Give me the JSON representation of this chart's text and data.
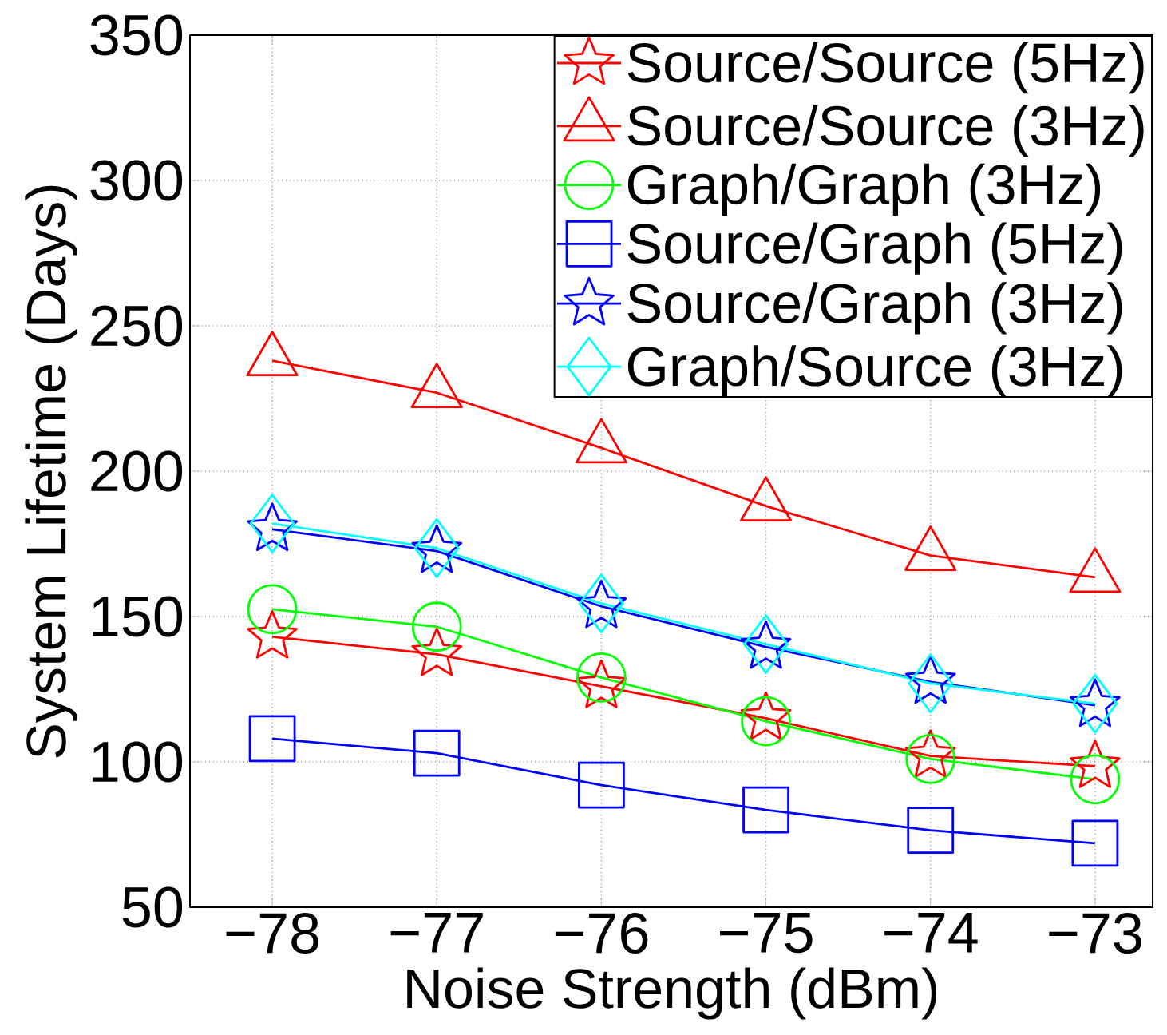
{
  "chart_data": {
    "type": "line",
    "xlabel": "Noise Strength (dBm)",
    "ylabel": "System Lifetime (Days)",
    "x": [
      -78,
      -77,
      -76,
      -75,
      -74,
      -73
    ],
    "xlim": [
      -78.5,
      -72.65
    ],
    "ylim": [
      50,
      350
    ],
    "xticks": [
      {
        "value": -78,
        "label": "−78"
      },
      {
        "value": -77,
        "label": "−77"
      },
      {
        "value": -76,
        "label": "−76"
      },
      {
        "value": -75,
        "label": "−75"
      },
      {
        "value": -74,
        "label": "−74"
      },
      {
        "value": -73,
        "label": "−73"
      }
    ],
    "yticks": [
      50,
      100,
      150,
      200,
      250,
      300,
      350
    ],
    "grid": true,
    "legend": "top right",
    "line_style": "solid",
    "series": [
      {
        "name": "Source/Source (5Hz)",
        "color": "#ff0000",
        "marker": "star",
        "values": [
          143,
          137,
          126,
          115,
          102,
          98.5
        ]
      },
      {
        "name": "Source/Source (3Hz)",
        "color": "#ff0000",
        "marker": "triangle",
        "values": [
          238,
          227,
          208,
          188,
          171,
          163.5
        ]
      },
      {
        "name": "Graph/Graph (3Hz)",
        "color": "#00ff00",
        "marker": "circle",
        "values": [
          152.5,
          146.5,
          129,
          114,
          101,
          94
        ]
      },
      {
        "name": "Source/Graph (5Hz)",
        "color": "#0000ff",
        "marker": "square",
        "values": [
          108,
          103,
          92,
          83.5,
          76.5,
          72
        ]
      },
      {
        "name": "Source/Graph (3Hz)",
        "color": "#0000ff",
        "marker": "star",
        "values": [
          180,
          172.5,
          153.5,
          139.5,
          127.5,
          119.5
        ]
      },
      {
        "name": "Graph/Source (3Hz)",
        "color": "#00ffff",
        "marker": "diamond",
        "values": [
          182,
          173.5,
          154.5,
          140.5,
          127,
          120
        ]
      }
    ]
  }
}
